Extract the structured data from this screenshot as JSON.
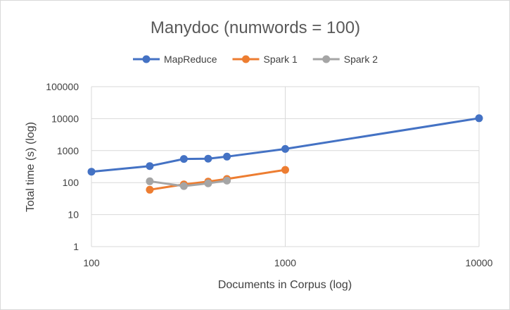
{
  "chart_data": {
    "type": "line",
    "title": "Manydoc (numwords = 100)",
    "xlabel": "Documents in Corpus (log)",
    "ylabel": "Total time (s) (log)",
    "x_scale": "log",
    "y_scale": "log",
    "xlim": [
      100,
      10000
    ],
    "ylim": [
      1,
      100000
    ],
    "x_ticks": [
      "100",
      "1000",
      "10000"
    ],
    "y_ticks": [
      "1",
      "10",
      "100",
      "1000",
      "10000",
      "100000"
    ],
    "grid": true,
    "legend_position": "top",
    "series": [
      {
        "name": "MapReduce",
        "color": "#4472c4",
        "points": [
          [
            100,
            220
          ],
          [
            200,
            330
          ],
          [
            300,
            550
          ],
          [
            400,
            560
          ],
          [
            500,
            650
          ],
          [
            1000,
            1130
          ],
          [
            10000,
            10300
          ]
        ]
      },
      {
        "name": "Spark 1",
        "color": "#ed7d31",
        "points": [
          [
            200,
            60
          ],
          [
            300,
            88
          ],
          [
            400,
            108
          ],
          [
            500,
            130
          ],
          [
            1000,
            250
          ]
        ]
      },
      {
        "name": "Spark 2",
        "color": "#a5a5a5",
        "points": [
          [
            200,
            110
          ],
          [
            300,
            78
          ],
          [
            400,
            95
          ],
          [
            500,
            115
          ]
        ]
      }
    ]
  }
}
